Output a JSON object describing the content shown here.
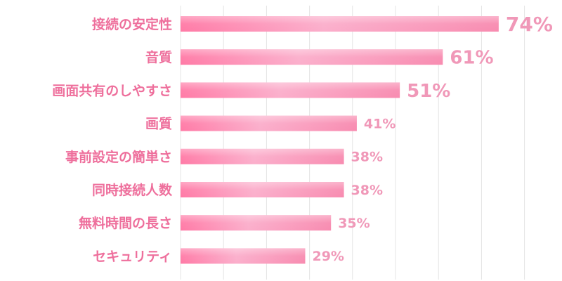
{
  "chart_data": {
    "type": "bar",
    "orientation": "horizontal",
    "title": "",
    "xlabel": "",
    "ylabel": "",
    "xlim": [
      0,
      80
    ],
    "grid": true,
    "legend": "none",
    "categories": [
      "接続の安定性",
      "音質",
      "画面共有のしやすさ",
      "画質",
      "事前設定の簡単さ",
      "同時接続人数",
      "無料時間の長さ",
      "セキュリティ"
    ],
    "values": [
      74,
      61,
      51,
      41,
      38,
      38,
      35,
      29
    ],
    "value_labels": [
      "74%",
      "61%",
      "51%",
      "41%",
      "38%",
      "38%",
      "35%",
      "29%"
    ],
    "colors": {
      "bar_main": "#f88bb0",
      "bar_highlight": "#fbaecb",
      "bar_accent": "#ff7aa6",
      "label": "#ee6f9c",
      "value_label": "#f098b8",
      "grid": "#e4e4e4"
    }
  }
}
